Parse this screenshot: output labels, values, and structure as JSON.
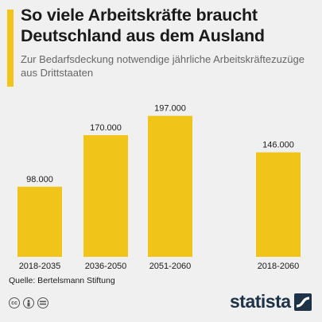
{
  "title": "So viele Arbeitskräfte braucht Deutschland aus dem Ausland",
  "subtitle": "Zur Bedarfsdeckung notwendige jährliche Arbeitskräftezuzüge aus Drittstaaten",
  "source": "Quelle: Bertelsmann Stiftung",
  "brand": "statista",
  "colors": {
    "accent": "#f0c419",
    "bar": "#f0c419",
    "text": "#1a1a1a",
    "background": "#f0f0f0",
    "brand": "#1e3348"
  },
  "footer_icons": [
    "cc-icon",
    "by-icon",
    "nd-icon"
  ],
  "chart_data": {
    "type": "bar",
    "categories": [
      "2018-2035",
      "2036-2050",
      "2051-2060",
      "2018-2060"
    ],
    "values": [
      98000,
      170000,
      197000,
      146000
    ],
    "value_labels": [
      "98.000",
      "170.000",
      "197.000",
      "146.000"
    ],
    "title": "",
    "xlabel": "",
    "ylabel": "",
    "ylim": [
      0,
      200000
    ],
    "grid": false,
    "legend": "none"
  }
}
